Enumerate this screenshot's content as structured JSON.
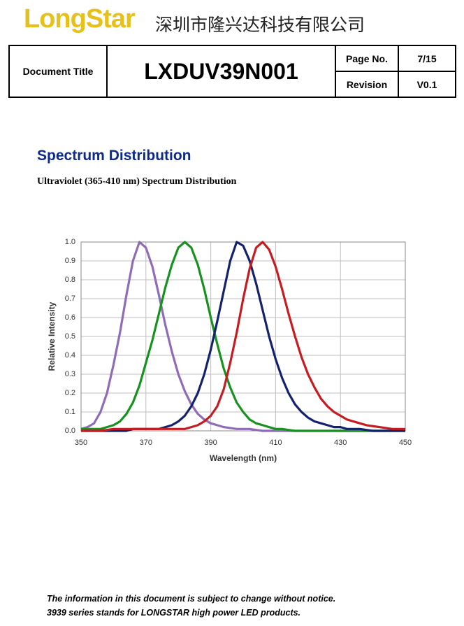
{
  "header": {
    "logo": "LongStar",
    "company": "深圳市隆兴达科技有限公司"
  },
  "doc_table": {
    "document_title_label": "Document Title",
    "document_title": "LXDUV39N001",
    "page_no_label": "Page No.",
    "page_no": "7/15",
    "revision_label": "Revision",
    "revision": "V0.1"
  },
  "section": {
    "title": "Spectrum Distribution",
    "subtitle": "Ultraviolet (365-410 nm) Spectrum Distribution"
  },
  "chart_data": {
    "type": "line",
    "x_label": "Wavelength (nm)",
    "y_label": "Relative Intensity",
    "x": [
      350,
      352,
      354,
      356,
      358,
      360,
      362,
      364,
      366,
      368,
      370,
      372,
      374,
      376,
      378,
      380,
      382,
      384,
      386,
      388,
      390,
      392,
      394,
      396,
      398,
      400,
      402,
      404,
      406,
      408,
      410,
      412,
      414,
      416,
      418,
      420,
      422,
      424,
      426,
      428,
      430,
      432,
      434,
      436,
      438,
      440,
      442,
      444,
      446,
      448,
      450
    ],
    "series": [
      {
        "color": "#8f6cb8",
        "values": [
          0.01,
          0.02,
          0.04,
          0.1,
          0.2,
          0.35,
          0.52,
          0.72,
          0.9,
          1.0,
          0.97,
          0.87,
          0.72,
          0.56,
          0.42,
          0.3,
          0.21,
          0.14,
          0.09,
          0.06,
          0.04,
          0.03,
          0.02,
          0.015,
          0.01,
          0.01,
          0.01,
          0.005,
          0,
          0,
          0,
          0,
          0,
          0,
          0,
          0,
          0,
          0,
          0,
          0,
          0,
          0,
          0,
          0,
          0,
          0,
          0,
          0,
          0,
          0,
          0
        ]
      },
      {
        "color": "#17921f",
        "values": [
          0.01,
          0.01,
          0.01,
          0.01,
          0.02,
          0.03,
          0.05,
          0.09,
          0.15,
          0.24,
          0.36,
          0.48,
          0.62,
          0.76,
          0.88,
          0.97,
          1.0,
          0.97,
          0.88,
          0.75,
          0.6,
          0.46,
          0.33,
          0.23,
          0.15,
          0.1,
          0.06,
          0.04,
          0.03,
          0.02,
          0.01,
          0.01,
          0.005,
          0,
          0,
          0,
          0,
          0,
          0,
          0,
          0,
          0,
          0,
          0,
          0,
          0,
          0,
          0,
          0,
          0,
          0
        ]
      },
      {
        "color": "#13226c",
        "values": [
          0,
          0,
          0,
          0,
          0,
          0,
          0,
          0,
          0.01,
          0.01,
          0.01,
          0.01,
          0.01,
          0.02,
          0.03,
          0.05,
          0.08,
          0.13,
          0.2,
          0.3,
          0.43,
          0.58,
          0.74,
          0.9,
          1.0,
          0.98,
          0.9,
          0.78,
          0.64,
          0.5,
          0.38,
          0.28,
          0.2,
          0.14,
          0.1,
          0.07,
          0.05,
          0.04,
          0.03,
          0.02,
          0.02,
          0.01,
          0.01,
          0.01,
          0.005,
          0,
          0,
          0,
          0,
          0,
          0
        ]
      },
      {
        "color": "#c61c21",
        "values": [
          0,
          0,
          0,
          0,
          0.005,
          0.01,
          0.01,
          0.01,
          0.01,
          0.01,
          0.01,
          0.01,
          0.01,
          0.01,
          0.01,
          0.01,
          0.01,
          0.02,
          0.03,
          0.05,
          0.08,
          0.13,
          0.22,
          0.36,
          0.52,
          0.7,
          0.86,
          0.97,
          1.0,
          0.96,
          0.87,
          0.75,
          0.62,
          0.5,
          0.39,
          0.3,
          0.23,
          0.17,
          0.13,
          0.1,
          0.08,
          0.06,
          0.05,
          0.04,
          0.03,
          0.025,
          0.02,
          0.015,
          0.01,
          0.01,
          0.01
        ]
      }
    ],
    "xlim": [
      350,
      450
    ],
    "xticks": [
      350,
      370,
      390,
      410,
      430,
      450
    ],
    "ylim": [
      0,
      1
    ],
    "yticks": [
      {
        "value": 0,
        "label": "0.0"
      },
      0.1,
      0.2,
      0.3,
      0.4,
      0.5,
      0.6,
      0.7,
      0.8,
      0.9,
      {
        "value": 1,
        "label": "1.0"
      }
    ],
    "grid": true
  },
  "footer": {
    "lines": [
      "The information in this document is subject to change without notice.",
      "3939 series stands for LONGSTAR high power LED products."
    ]
  }
}
